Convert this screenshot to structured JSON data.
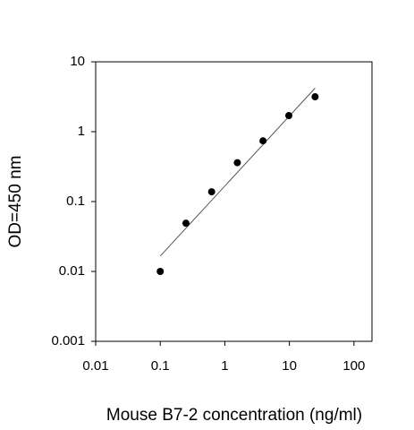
{
  "chart_data": {
    "type": "scatter",
    "x_label": "Mouse B7-2 concentration (ng/ml)",
    "y_label": "OD=450 nm",
    "x_log": true,
    "y_log": true,
    "xlim": [
      0.01,
      190
    ],
    "ylim": [
      0.001,
      10
    ],
    "xticks": [
      0.01,
      0.1,
      1,
      10,
      100
    ],
    "yticks": [
      0.001,
      0.01,
      0.1,
      1,
      10
    ],
    "series": [
      {
        "color": "#000000",
        "x": [
          0.1,
          0.25,
          0.625,
          1.5625,
          3.9,
          9.8,
          25
        ],
        "values": [
          0.01,
          0.049,
          0.138,
          0.36,
          0.74,
          1.7,
          3.16
        ]
      }
    ],
    "fit_line": {
      "color": "#555555",
      "x": [
        0.1,
        25
      ],
      "values": [
        0.0166,
        4.2
      ]
    }
  }
}
